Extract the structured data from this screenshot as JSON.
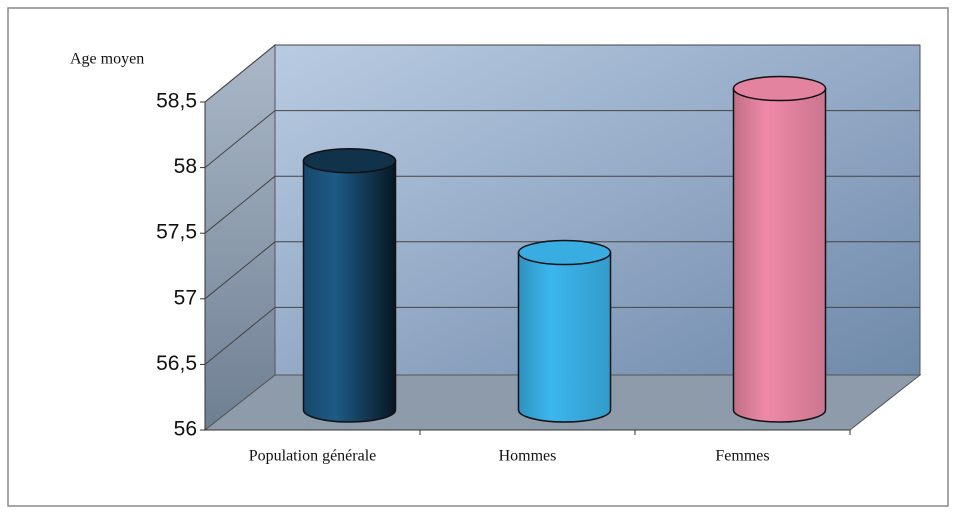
{
  "chart_data": {
    "type": "bar3d",
    "y_axis_label": "Age moyen",
    "categories": [
      "Population générale",
      "Hommes",
      "Femmes"
    ],
    "values": [
      57.9,
      57.2,
      58.45
    ],
    "colors": [
      "#1d5a86",
      "#3cb6ee",
      "#ef8aa8"
    ],
    "ylim": [
      56,
      58.5
    ],
    "yticks": [
      56,
      {
        "value": 56.5,
        "label": "56,5"
      },
      57,
      {
        "value": 57.5,
        "label": "57,5"
      },
      58,
      {
        "value": 58.5,
        "label": "58,5"
      }
    ],
    "grid": true
  }
}
